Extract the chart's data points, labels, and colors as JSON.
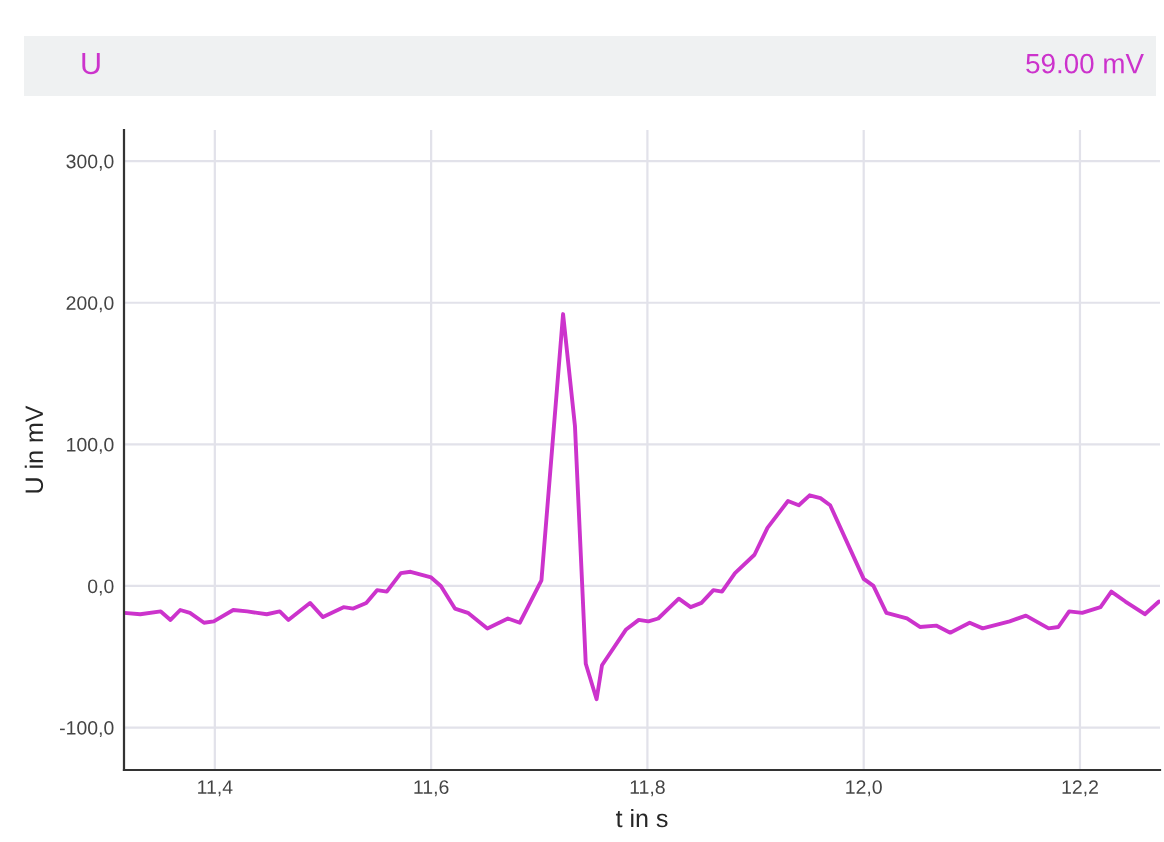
{
  "chart_data": {
    "type": "line",
    "title": "U",
    "annotations": [
      "59.00 mV"
    ],
    "xlabel": "t in s",
    "ylabel": "U in mV",
    "x": [
      11.316,
      11.331,
      11.35,
      11.359,
      11.368,
      11.377,
      11.39,
      11.399,
      11.417,
      11.43,
      11.448,
      11.46,
      11.468,
      11.488,
      11.5,
      11.519,
      11.528,
      11.54,
      11.55,
      11.559,
      11.572,
      11.581,
      11.6,
      11.609,
      11.622,
      11.634,
      11.652,
      11.671,
      11.682,
      11.702,
      11.722,
      11.733,
      11.743,
      11.753,
      11.758,
      11.78,
      11.792,
      11.801,
      11.81,
      11.829,
      11.84,
      11.85,
      11.861,
      11.869,
      11.881,
      11.899,
      11.911,
      11.93,
      11.94,
      11.95,
      11.96,
      11.969,
      12.0,
      12.009,
      12.021,
      12.04,
      12.052,
      12.067,
      12.08,
      12.098,
      12.11,
      12.135,
      12.15,
      12.171,
      12.18,
      12.19,
      12.202,
      12.219,
      12.229,
      12.242,
      12.26,
      12.273
    ],
    "series": [
      {
        "color": "#cc33cc",
        "values": [
          -19,
          -20,
          -18,
          -24,
          -17,
          -19,
          -26,
          -25,
          -17,
          -18,
          -20,
          -18,
          -24,
          -12,
          -22,
          -15,
          -16,
          -12,
          -3,
          -4,
          9,
          10,
          6,
          0,
          -16,
          -19,
          -30,
          -23,
          -26,
          4,
          192,
          113,
          -55,
          -80,
          -56,
          -31,
          -24,
          -25,
          -23,
          -9,
          -15,
          -12,
          -3,
          -4,
          9,
          22,
          41,
          60,
          57,
          64,
          62,
          57,
          5,
          0,
          -19,
          -23,
          -29,
          -28,
          -33,
          -26,
          -30,
          -25,
          -21,
          -30,
          -29,
          -18,
          -19,
          -15,
          -4,
          -11,
          -20,
          -11
        ]
      }
    ],
    "xlim": [
      11.316,
      12.274
    ],
    "ylim": [
      -130,
      322
    ],
    "xticks": [
      {
        "value": 11.4,
        "label": "11,4"
      },
      {
        "value": 11.6,
        "label": "11,6"
      },
      {
        "value": 11.8,
        "label": "11,8"
      },
      {
        "value": 12.0,
        "label": "12,0"
      },
      {
        "value": 12.2,
        "label": "12,2"
      }
    ],
    "yticks": [
      {
        "value": -100,
        "label": "-100,0"
      },
      {
        "value": 0,
        "label": "0,0"
      },
      {
        "value": 100,
        "label": "100,0"
      },
      {
        "value": 200,
        "label": "200,0"
      },
      {
        "value": 300,
        "label": "300,0"
      }
    ],
    "grid": true,
    "marker": "none",
    "line_style": "solid"
  }
}
